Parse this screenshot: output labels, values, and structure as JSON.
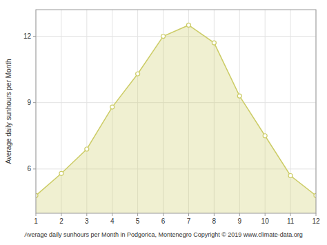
{
  "chart_data": {
    "type": "area",
    "x": [
      1,
      2,
      3,
      4,
      5,
      6,
      7,
      8,
      9,
      10,
      11,
      12
    ],
    "values": [
      4.8,
      5.8,
      6.9,
      8.8,
      10.3,
      12.0,
      12.5,
      11.7,
      9.3,
      7.5,
      5.7,
      4.8
    ],
    "color": "#cccc66",
    "marker": "circle",
    "xlabel": "Average daily sunhours per Month in Podgorica, Montenegro Copyright © 2019 www.climate-data.org",
    "ylabel": "Average daily sunhours per Month",
    "xlim": [
      1,
      12
    ],
    "ylim": [
      4.0,
      13.2
    ],
    "xticks": [
      1,
      2,
      3,
      4,
      5,
      6,
      7,
      8,
      9,
      10,
      11,
      12
    ],
    "yticks": [
      6,
      9,
      12
    ],
    "grid": true
  }
}
